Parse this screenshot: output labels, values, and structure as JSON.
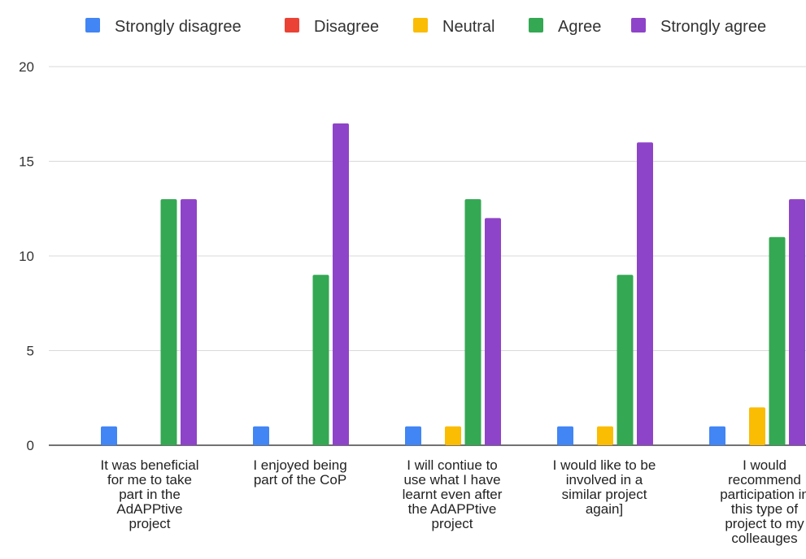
{
  "chart_data": {
    "type": "bar",
    "title": "",
    "xlabel": "",
    "ylabel": "",
    "ylim": [
      0,
      20
    ],
    "yticks": [
      0,
      5,
      10,
      15,
      20
    ],
    "grid": true,
    "legend_position": "top",
    "categories": [
      [
        "It was beneficial",
        "for me to take",
        "part in the",
        "AdAPPtive",
        "project"
      ],
      [
        "I enjoyed being",
        "part of the CoP"
      ],
      [
        "I will contiue to",
        "use what I have",
        "learnt even after",
        "the AdAPPtive",
        "project"
      ],
      [
        "I would like to be",
        "involved in a",
        "similar project",
        "again]"
      ],
      [
        "I would",
        "recommend",
        "participation in",
        "this type of",
        "project to my",
        "colleauges"
      ]
    ],
    "series": [
      {
        "name": "Strongly disagree",
        "color": "#4285f4",
        "values": [
          1,
          1,
          1,
          1,
          1
        ]
      },
      {
        "name": "Disagree",
        "color": "#ea4335",
        "values": [
          0,
          0,
          0,
          0,
          0
        ]
      },
      {
        "name": "Neutral",
        "color": "#fbbc04",
        "values": [
          0,
          0,
          1,
          1,
          2
        ]
      },
      {
        "name": "Agree",
        "color": "#34a853",
        "values": [
          13,
          9,
          13,
          9,
          11
        ]
      },
      {
        "name": "Strongly agree",
        "color": "#8e44c8",
        "values": [
          13,
          17,
          12,
          16,
          13
        ]
      }
    ]
  }
}
